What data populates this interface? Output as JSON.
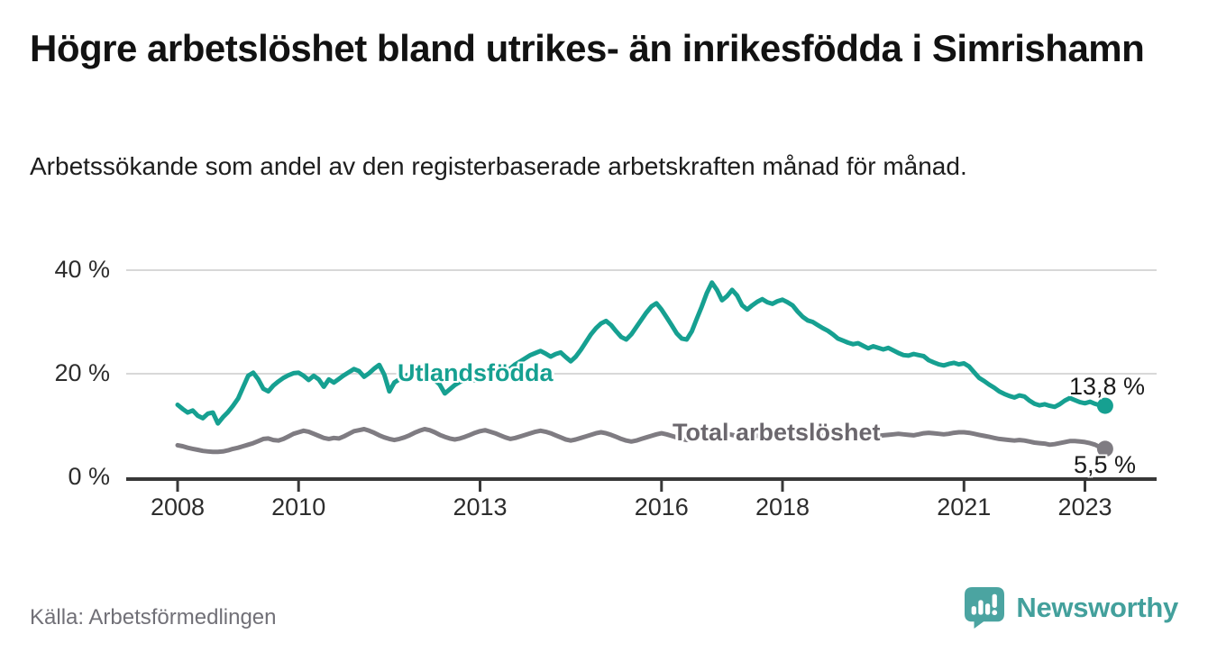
{
  "title": "Högre arbetslöshet bland utrikes- än inrikesfödda i Simrishamn",
  "subtitle": "Arbetssökande som andel av den registerbaserade arbetskraften månad för månad.",
  "source": "Källa: Arbetsförmedlingen",
  "branding": {
    "wordmark": "Newsworthy",
    "icon": "bar-chart-speech-bubble-icon",
    "color": "#4ba4a1",
    "wordmark_color": "#43a09c"
  },
  "colors": {
    "foreign_born_line": "#16a091",
    "total_line": "#7f7c82",
    "gridline": "#d8d8d8",
    "axis": "#383838",
    "text": "#121212"
  },
  "chart_data": {
    "type": "line",
    "title": "Högre arbetslöshet bland utrikes- än inrikesfödda i Simrishamn",
    "xlabel": "",
    "ylabel": "Arbetssökande som andel av den registerbaserade arbetskraften",
    "y_unit": "%",
    "frequency": "monthly",
    "x_start": "2008-01",
    "x_end": "2023-05",
    "x_ticks": [
      2008,
      2010,
      2013,
      2016,
      2018,
      2021,
      2023
    ],
    "y_ticks": [
      {
        "value": 0,
        "label": "0 %"
      },
      {
        "value": 20,
        "label": "20 %"
      },
      {
        "value": 40,
        "label": "40 %"
      }
    ],
    "ylim": [
      0,
      43.5
    ],
    "grid": "horizontal",
    "legend_position": "inline-labels",
    "series": [
      {
        "name": "Utlandsfödda",
        "color": "#16a091",
        "end_label": "13,8 %",
        "last_value": 13.8,
        "values": [
          14.0,
          13.2,
          12.5,
          12.9,
          11.9,
          11.4,
          12.3,
          12.5,
          10.4,
          11.6,
          12.6,
          13.8,
          15.2,
          17.4,
          19.6,
          20.2,
          18.9,
          17.1,
          16.6,
          17.7,
          18.5,
          19.2,
          19.7,
          20.1,
          20.2,
          19.6,
          18.8,
          19.6,
          18.9,
          17.5,
          18.9,
          18.3,
          19.0,
          19.7,
          20.3,
          20.9,
          20.5,
          19.4,
          20.1,
          21.0,
          21.7,
          19.8,
          16.6,
          18.3,
          18.9,
          19.5,
          19.9,
          19.3,
          19.6,
          20.1,
          19.5,
          18.8,
          17.9,
          16.2,
          17.0,
          17.8,
          18.4,
          18.9,
          19.2,
          18.7,
          18.9,
          19.4,
          19.9,
          20.4,
          20.9,
          20.2,
          21.0,
          21.8,
          22.4,
          23.0,
          23.6,
          24.0,
          24.4,
          23.9,
          23.3,
          23.8,
          24.1,
          23.2,
          22.4,
          23.3,
          24.6,
          26.1,
          27.6,
          28.8,
          29.7,
          30.2,
          29.4,
          28.2,
          27.1,
          26.6,
          27.6,
          29.0,
          30.4,
          31.8,
          33.0,
          33.6,
          32.4,
          30.9,
          29.4,
          27.8,
          26.8,
          26.6,
          28.2,
          30.6,
          33.0,
          35.6,
          37.6,
          36.2,
          34.2,
          35.0,
          36.2,
          35.1,
          33.2,
          32.4,
          33.2,
          33.9,
          34.4,
          33.8,
          33.5,
          34.0,
          34.3,
          33.8,
          33.2,
          32.0,
          31.0,
          30.3,
          30.0,
          29.4,
          28.8,
          28.3,
          27.6,
          26.8,
          26.4,
          26.0,
          25.7,
          25.9,
          25.4,
          24.9,
          25.3,
          25.0,
          24.7,
          25.0,
          24.5,
          24.0,
          23.6,
          23.5,
          23.8,
          23.6,
          23.4,
          22.6,
          22.2,
          21.8,
          21.6,
          21.9,
          22.1,
          21.8,
          22.0,
          21.4,
          20.3,
          19.2,
          18.6,
          17.9,
          17.3,
          16.6,
          16.1,
          15.7,
          15.4,
          15.8,
          15.6,
          14.8,
          14.2,
          13.9,
          14.1,
          13.8,
          13.6,
          14.1,
          14.8,
          15.3,
          14.9,
          14.5,
          14.3,
          14.6,
          14.2,
          13.9,
          13.8
        ]
      },
      {
        "name": "Total arbetslöshet",
        "color": "#7f7c82",
        "end_label": "5,5 %",
        "last_value": 5.5,
        "values": [
          6.2,
          6.0,
          5.7,
          5.5,
          5.3,
          5.1,
          5.0,
          4.9,
          4.9,
          5.0,
          5.2,
          5.5,
          5.7,
          6.0,
          6.3,
          6.6,
          7.0,
          7.4,
          7.5,
          7.2,
          7.1,
          7.4,
          7.9,
          8.4,
          8.7,
          9.0,
          8.8,
          8.4,
          8.0,
          7.6,
          7.4,
          7.6,
          7.5,
          7.9,
          8.4,
          8.9,
          9.1,
          9.3,
          9.0,
          8.6,
          8.1,
          7.7,
          7.4,
          7.2,
          7.4,
          7.7,
          8.1,
          8.6,
          9.0,
          9.3,
          9.1,
          8.7,
          8.2,
          7.8,
          7.5,
          7.3,
          7.5,
          7.8,
          8.2,
          8.6,
          8.9,
          9.1,
          8.8,
          8.5,
          8.1,
          7.7,
          7.4,
          7.6,
          7.9,
          8.2,
          8.5,
          8.8,
          9.0,
          8.8,
          8.5,
          8.1,
          7.7,
          7.3,
          7.1,
          7.3,
          7.6,
          7.9,
          8.2,
          8.5,
          8.7,
          8.5,
          8.2,
          7.8,
          7.4,
          7.1,
          6.9,
          7.1,
          7.4,
          7.7,
          8.0,
          8.3,
          8.5,
          8.3,
          8.0,
          7.7,
          7.4,
          7.2,
          7.4,
          7.6,
          7.9,
          8.1,
          8.3,
          8.5,
          8.6,
          8.4,
          8.2,
          8.0,
          7.8,
          7.6,
          7.8,
          8.0,
          8.2,
          8.3,
          8.4,
          8.5,
          8.5,
          8.4,
          8.2,
          8.0,
          7.8,
          7.7,
          7.8,
          7.9,
          8.0,
          8.1,
          8.2,
          8.3,
          8.3,
          8.2,
          8.0,
          7.9,
          7.8,
          7.7,
          7.9,
          8.0,
          8.1,
          8.2,
          8.3,
          8.4,
          8.3,
          8.2,
          8.1,
          8.3,
          8.5,
          8.6,
          8.5,
          8.4,
          8.3,
          8.4,
          8.6,
          8.7,
          8.7,
          8.6,
          8.4,
          8.2,
          8.0,
          7.8,
          7.6,
          7.4,
          7.3,
          7.2,
          7.1,
          7.2,
          7.1,
          6.9,
          6.7,
          6.6,
          6.5,
          6.3,
          6.4,
          6.6,
          6.8,
          7.0,
          7.0,
          6.9,
          6.8,
          6.6,
          6.3,
          5.8,
          5.5
        ]
      }
    ]
  }
}
